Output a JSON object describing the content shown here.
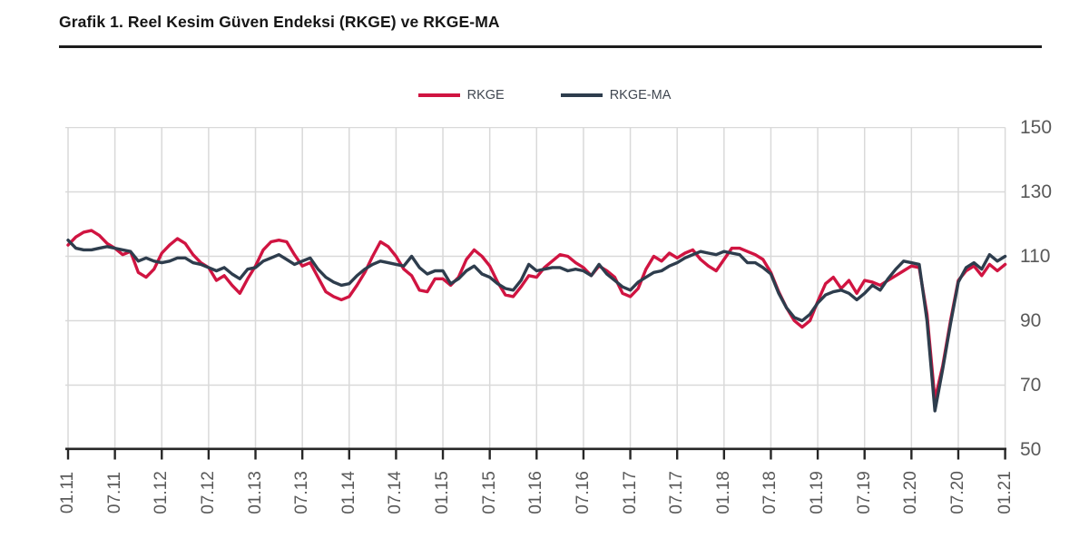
{
  "chart_data": {
    "type": "line",
    "title": "Grafik 1. Reel Kesim Güven Endeksi (RKGE) ve RKGE-MA",
    "xlabel": "",
    "ylabel": "",
    "ylim": [
      50,
      150
    ],
    "yticks": [
      150,
      130,
      110,
      90,
      70,
      50
    ],
    "grid": true,
    "legend_position": "top-center",
    "x_tick_labels": [
      "01.11",
      "07.11",
      "01.12",
      "07.12",
      "01.13",
      "07.13",
      "01.14",
      "07.14",
      "01.15",
      "07.15",
      "01.16",
      "07.16",
      "01.17",
      "07.17",
      "01.18",
      "07.18",
      "01.19",
      "07.19",
      "01.20",
      "07.20",
      "01.21"
    ],
    "months_between_ticks": 6,
    "series": [
      {
        "name": "RKGE",
        "color": "#d01441",
        "values": [
          113.5,
          116,
          117.5,
          118,
          116.5,
          114,
          112.5,
          110.5,
          111.5,
          105,
          103.5,
          106,
          111,
          113.5,
          115.5,
          114,
          110.5,
          108,
          106.5,
          102.5,
          104,
          101,
          98.5,
          103,
          107,
          112,
          114.5,
          115,
          114.5,
          110.5,
          107,
          108,
          103.5,
          99,
          97.5,
          96.5,
          97.5,
          101,
          105,
          110,
          114.5,
          113,
          110,
          106,
          104,
          99.5,
          99,
          103,
          103,
          101,
          103.5,
          109,
          112,
          110,
          107,
          102,
          98,
          97.5,
          100.5,
          104,
          103.5,
          106.5,
          108.5,
          110.5,
          110,
          108,
          106.5,
          104,
          107,
          105.5,
          103.5,
          98.5,
          97.5,
          100,
          106,
          110,
          108.5,
          111,
          109.5,
          111,
          112,
          109,
          107,
          105.5,
          109,
          112.5,
          112.5,
          111.5,
          110.5,
          109,
          105,
          99,
          94,
          90,
          88,
          90,
          96,
          101.5,
          103.5,
          100,
          102.5,
          98.5,
          102.5,
          102,
          101,
          102.5,
          104,
          105.5,
          107,
          106.5,
          92,
          65.5,
          76,
          90,
          102.5,
          105.5,
          107,
          104,
          107.5,
          105.5,
          107.5
        ]
      },
      {
        "name": "RKGE-MA",
        "color": "#2e3d4d",
        "values": [
          115,
          112.5,
          112,
          112,
          112.5,
          113,
          112.5,
          112,
          111.5,
          108.5,
          109.5,
          108.5,
          108,
          108.5,
          109.5,
          109.5,
          108,
          107.5,
          106.5,
          105.5,
          106.5,
          104.5,
          103,
          106,
          106.5,
          108.5,
          109.5,
          110.5,
          109,
          107.5,
          108.5,
          109.5,
          106,
          103.5,
          102,
          101,
          101.5,
          104,
          106,
          107.5,
          108.5,
          108,
          107.5,
          107,
          110,
          106.5,
          104.5,
          105.5,
          105.5,
          101.5,
          103,
          105.5,
          107,
          104.5,
          103.5,
          101.5,
          100,
          99.5,
          102.5,
          107.5,
          105.5,
          106,
          106.5,
          106.5,
          105.5,
          106,
          105.5,
          104,
          107.5,
          104.5,
          102.5,
          100.5,
          99.5,
          102,
          103.5,
          105,
          105.5,
          107,
          108,
          109.5,
          110.5,
          111.5,
          111,
          110.5,
          111.5,
          111,
          110.5,
          108,
          108,
          106.5,
          104.5,
          98.5,
          94,
          91,
          90,
          92,
          95.5,
          98,
          99,
          99.5,
          98.5,
          96.5,
          98.5,
          101,
          99.5,
          103,
          106,
          108.5,
          108,
          107.5,
          90,
          62,
          75,
          89,
          102,
          106.5,
          108,
          106,
          110.5,
          108.5,
          110
        ]
      }
    ]
  },
  "colors": {
    "grid": "#d9d9d9",
    "axis": "#262626",
    "tick_label": "#595959",
    "title": "#161616",
    "legend_text": "#3f4650",
    "background": "#ffffff"
  }
}
